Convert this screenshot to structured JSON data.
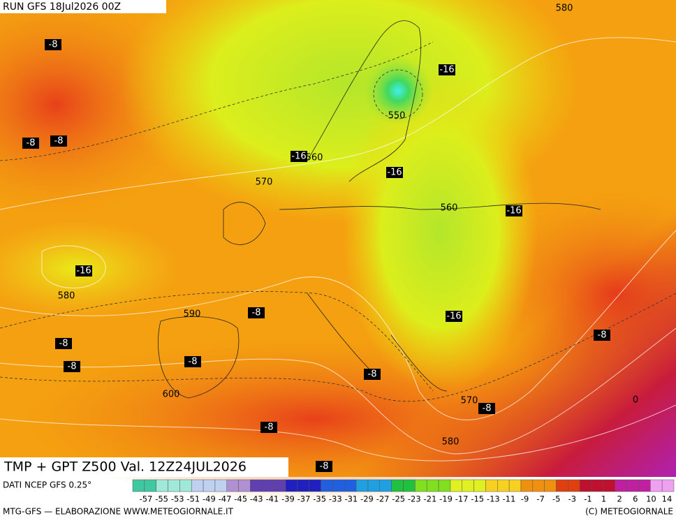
{
  "header": {
    "run": "RUN GFS 18Jul2026 00Z"
  },
  "map": {
    "title": "TMP + GPT Z500 Val. 12Z24JUL2026",
    "contour_labels": [
      -8,
      -16,
      580,
      550,
      -8,
      -8,
      -16,
      560,
      -16,
      570,
      560,
      -16,
      -16,
      580,
      590,
      -8,
      -16,
      -8,
      -8,
      -8,
      -8,
      -8,
      600,
      570,
      -8,
      0,
      -8,
      580,
      -8
    ]
  },
  "scale": {
    "source": "DATI NCEP GFS 0.25°",
    "labels": [
      -57,
      -55,
      -53,
      -51,
      -49,
      -47,
      -45,
      -43,
      -41,
      -39,
      -37,
      -35,
      -33,
      -31,
      -29,
      -27,
      -25,
      -23,
      -21,
      -19,
      -17,
      -15,
      -13,
      -11,
      -9,
      -7,
      -5,
      -3,
      -1,
      1,
      2,
      6,
      10,
      14
    ]
  },
  "footer": {
    "left": "MTG-GFS — ELABORAZIONE WWW.METEOGIORNALE.IT",
    "right": "(C) METEOGIORNALE"
  }
}
